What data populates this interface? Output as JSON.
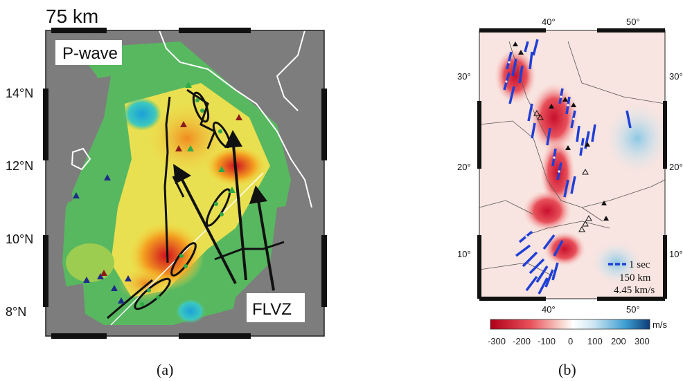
{
  "panel_a": {
    "depth_title": "75 km",
    "wave_label": "P-wave",
    "lat_labels": [
      "14°N",
      "12°N",
      "10°N",
      "8°N"
    ],
    "zone_label": "FLVZ",
    "caption": "(a)"
  },
  "panel_b": {
    "top_lon_labels": [
      "40°",
      "50°"
    ],
    "bottom_lon_labels": [
      "40°",
      "50°"
    ],
    "left_lat_labels": [
      "30°",
      "20°",
      "10°"
    ],
    "right_lat_labels": [
      "30°",
      "20°",
      "10°"
    ],
    "legend_line1": "1 sec",
    "legend_line2": "150 km",
    "legend_line3": "4.45 km/s",
    "colorbar_unit": "m/s",
    "colorbar_ticks": [
      "-300",
      "-200",
      "-100",
      "0",
      "100",
      "200",
      "300"
    ],
    "caption": "(b)"
  },
  "colors": {
    "slow_red": "#c8102e",
    "fast_blue": "#1e90c8",
    "splitting_bar": "#1f3fd6",
    "land_gray": "#7d7d7d"
  }
}
